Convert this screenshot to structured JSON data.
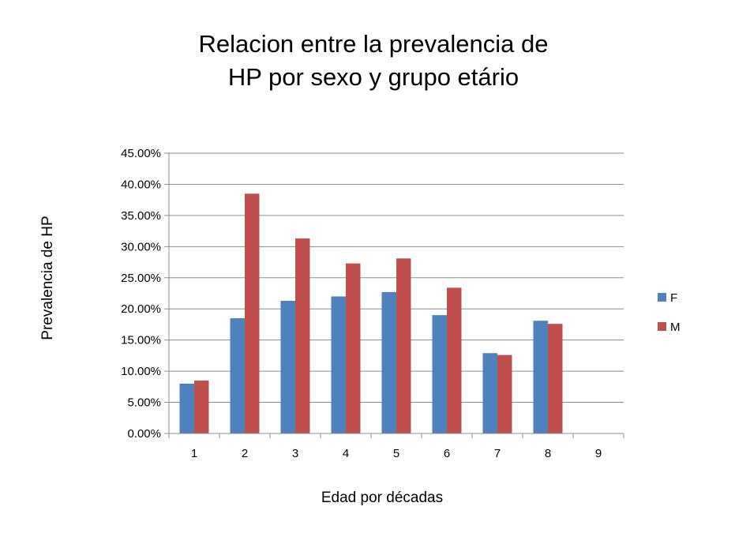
{
  "chart_data": {
    "type": "bar",
    "title_lines": [
      "Relacion entre la prevalencia de",
      "HP por sexo y grupo etário"
    ],
    "xlabel": "Edad por décadas",
    "ylabel": "Prevalencia de HP",
    "categories": [
      "1",
      "2",
      "3",
      "4",
      "5",
      "6",
      "7",
      "8",
      "9"
    ],
    "ylim": [
      0,
      45
    ],
    "ytick_values": [
      0,
      5,
      10,
      15,
      20,
      25,
      30,
      35,
      40,
      45
    ],
    "ytick_labels": [
      "0.00%",
      "5.00%",
      "10.00%",
      "15.00%",
      "20.00%",
      "25.00%",
      "30.00%",
      "35.00%",
      "40.00%",
      "45.00%"
    ],
    "grid": true,
    "legend_position": "right",
    "series": [
      {
        "name": "F",
        "color": "#4F81BD",
        "values": [
          8.0,
          18.5,
          21.3,
          22.0,
          22.7,
          19.0,
          12.9,
          18.1,
          0
        ]
      },
      {
        "name": "M",
        "color": "#C0504D",
        "values": [
          8.5,
          38.5,
          31.3,
          27.3,
          28.1,
          23.4,
          12.6,
          17.6,
          0
        ]
      }
    ]
  }
}
